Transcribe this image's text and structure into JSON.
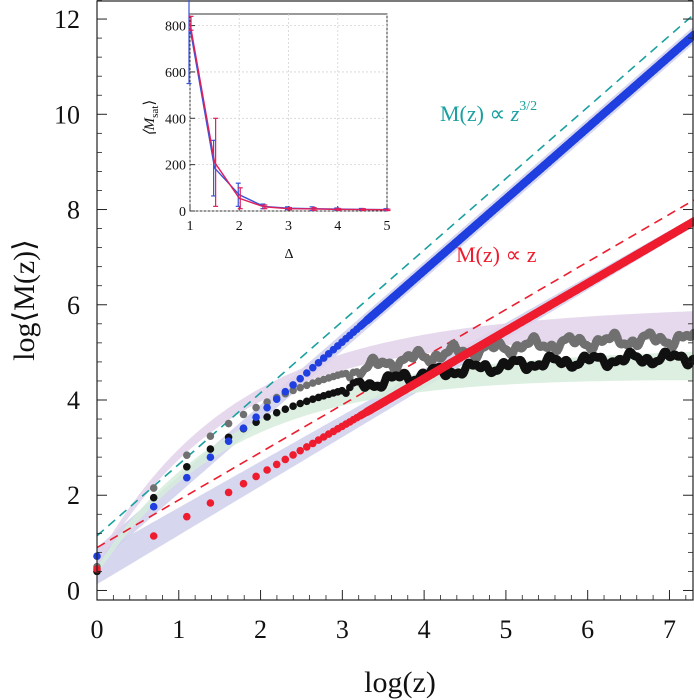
{
  "colors": {
    "blue": "#1f3fe0",
    "red": "#ee1c2e",
    "black": "#111111",
    "gray": "#707070",
    "teal": "#1aa0a0",
    "band_lavender": "#cfd0ec",
    "band_purple": "#e2d2ea",
    "band_green": "#d6ecdc",
    "inset_blue": "#3a52d9",
    "inset_red": "#e0205a"
  },
  "chart_data": [
    {
      "type": "scatter",
      "title": "",
      "xlabel": "log(z)",
      "ylabel": "log⟨M(z)⟩",
      "xlim": [
        0,
        7.3
      ],
      "ylim": [
        -0.2,
        12.4
      ],
      "xticks": [
        "0",
        "1",
        "2",
        "3",
        "4",
        "5",
        "6",
        "7"
      ],
      "yticks": [
        "0",
        "2",
        "4",
        "6",
        "8",
        "10",
        "12"
      ],
      "series": [
        {
          "name": "blue",
          "color": "#1f3fe0",
          "model": "1.5x+0.72",
          "x_start": 0,
          "x_end": 7.3
        },
        {
          "name": "red",
          "color": "#ee1c2e",
          "model": "x+0.45",
          "x_start": 0,
          "x_end": 7.3
        },
        {
          "name": "gray",
          "color": "#707070",
          "model": "saturating",
          "x_start": 0,
          "x_end": 7.3,
          "plateau": 5.35
        },
        {
          "name": "black",
          "color": "#111111",
          "model": "saturating",
          "x_start": 0,
          "x_end": 7.3,
          "plateau": 5.05
        }
      ],
      "reference_lines": [
        {
          "name": "z^{3/2} fit",
          "color": "#1aa0a0",
          "slope": 1.5,
          "intercept": 1.15,
          "dash": true
        },
        {
          "name": "z fit",
          "color": "#ee1c2e",
          "slope": 1.0,
          "intercept": 0.9,
          "dash": true
        }
      ],
      "annotations": [
        {
          "id": "ann_32",
          "text_main": "M(z) ∝ ",
          "text_var": "z",
          "text_exp": "3/2",
          "color": "#1aa0a0"
        },
        {
          "id": "ann_1",
          "text_main": "M(z) ∝  z",
          "color": "#ee1c2e"
        }
      ]
    },
    {
      "type": "line",
      "title": "inset",
      "xlabel": "Δ",
      "ylabel": "⟨M_sat⟩",
      "xlim": [
        1,
        5
      ],
      "ylim": [
        0,
        850
      ],
      "xticks": [
        1,
        2,
        3,
        4,
        5
      ],
      "yticks": [
        0,
        200,
        400,
        600,
        800
      ],
      "x": [
        1,
        1.5,
        2,
        2.5,
        3,
        3.5,
        4,
        4.5,
        5
      ],
      "series": [
        {
          "name": "blue",
          "color": "#3a52d9",
          "values": [
            790,
            185,
            70,
            20,
            12,
            10,
            8,
            7,
            6
          ],
          "err": [
            240,
            120,
            50,
            10,
            6,
            8,
            5,
            4,
            4
          ]
        },
        {
          "name": "red",
          "color": "#e0205a",
          "values": [
            810,
            210,
            55,
            18,
            10,
            9,
            7,
            6,
            5
          ],
          "err": [
            30,
            190,
            45,
            8,
            5,
            6,
            4,
            4,
            3
          ]
        }
      ]
    }
  ],
  "inset": {
    "ylabel_main": "⟨M",
    "ylabel_sub": "sat",
    "ylabel_end": "⟩",
    "xlabel": "Δ"
  }
}
